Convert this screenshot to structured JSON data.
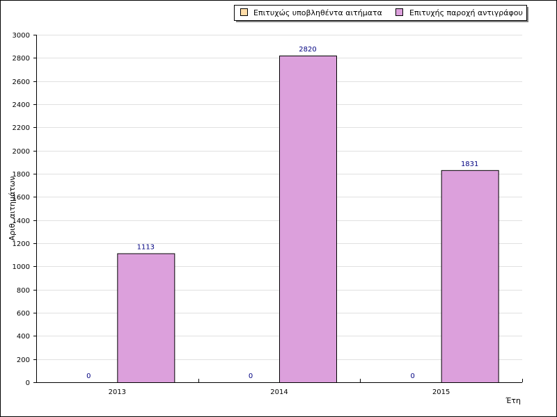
{
  "chart_data": {
    "type": "bar",
    "categories": [
      "2013",
      "2014",
      "2015"
    ],
    "series": [
      {
        "name": "Επιτυχώς υποβληθέντα αιτήματα",
        "values": [
          0,
          0,
          0
        ],
        "color": "#FFDDA8",
        "data_labels": [
          "0",
          "0",
          "0"
        ]
      },
      {
        "name": "Επιτυχής παροχή αντιγράφου",
        "values": [
          1113,
          2820,
          1831
        ],
        "color": "#DCA0DC",
        "data_labels": [
          "1113",
          "2820",
          "1831"
        ]
      }
    ],
    "xlabel": "Έτη",
    "ylabel": "Αριθ. αιτημάτων",
    "ylim": [
      0,
      3000
    ],
    "yticks": [
      "0",
      "200",
      "400",
      "600",
      "800",
      "1000",
      "1200",
      "1400",
      "1600",
      "1800",
      "2000",
      "2200",
      "2400",
      "2600",
      "2800",
      "3000"
    ],
    "grid": true,
    "legend_position": "top-right",
    "colors": {
      "gridline": "#E0E0E0",
      "axis": "#000000",
      "data_label": "#000080"
    }
  }
}
